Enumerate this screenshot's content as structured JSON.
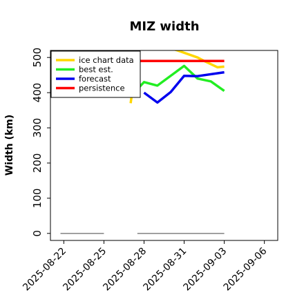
{
  "chart_data": {
    "type": "line",
    "title": "MIZ width",
    "xlabel": "",
    "ylabel": "Width (km)",
    "ylim": [
      -20,
      520
    ],
    "yticks": [
      0,
      100,
      200,
      300,
      400,
      500
    ],
    "xlim": [
      "2025-08-21",
      "2025-09-07"
    ],
    "xticks": [
      "2025-08-22",
      "2025-08-25",
      "2025-08-28",
      "2025-08-31",
      "2025-09-03",
      "2025-09-06"
    ],
    "highlight_tick": "2025-08-28",
    "highlight_color": "#228B22",
    "legend": {
      "placement": "top-left"
    },
    "series": [
      {
        "name": "ice chart data",
        "color": "#FFD700",
        "x": [
          "2025-08-27",
          "2025-08-27 12:00",
          "2025-08-28",
          "2025-08-30 12:00",
          "2025-09-01",
          "2025-09-01 12:00",
          "2025-09-02 12:00",
          "2025-09-03"
        ],
        "y": [
          370,
          510,
          550,
          520,
          500,
          490,
          472,
          474
        ]
      },
      {
        "name": "best est.",
        "color": "#22EE22",
        "x": [
          "2025-08-27",
          "2025-08-28",
          "2025-08-29",
          "2025-08-31",
          "2025-09-01",
          "2025-09-02",
          "2025-09-03"
        ],
        "y": [
          390,
          430,
          420,
          476,
          440,
          432,
          405
        ]
      },
      {
        "name": "forecast",
        "color": "#0000EE",
        "x": [
          "2025-08-28",
          "2025-08-29",
          "2025-08-30",
          "2025-08-31",
          "2025-09-01",
          "2025-09-03"
        ],
        "y": [
          400,
          372,
          402,
          448,
          447,
          458
        ]
      },
      {
        "name": "persistence",
        "color": "#FF0000",
        "x": [
          "2025-08-27",
          "2025-09-03"
        ],
        "y": [
          490,
          490
        ]
      }
    ],
    "baselines": [
      {
        "color": "#808080",
        "x": [
          "2025-08-21 18:00",
          "2025-08-25"
        ],
        "y": [
          0,
          0
        ]
      },
      {
        "color": "#808080",
        "x": [
          "2025-08-27 12:00",
          "2025-09-03"
        ],
        "y": [
          0,
          0
        ]
      }
    ]
  }
}
